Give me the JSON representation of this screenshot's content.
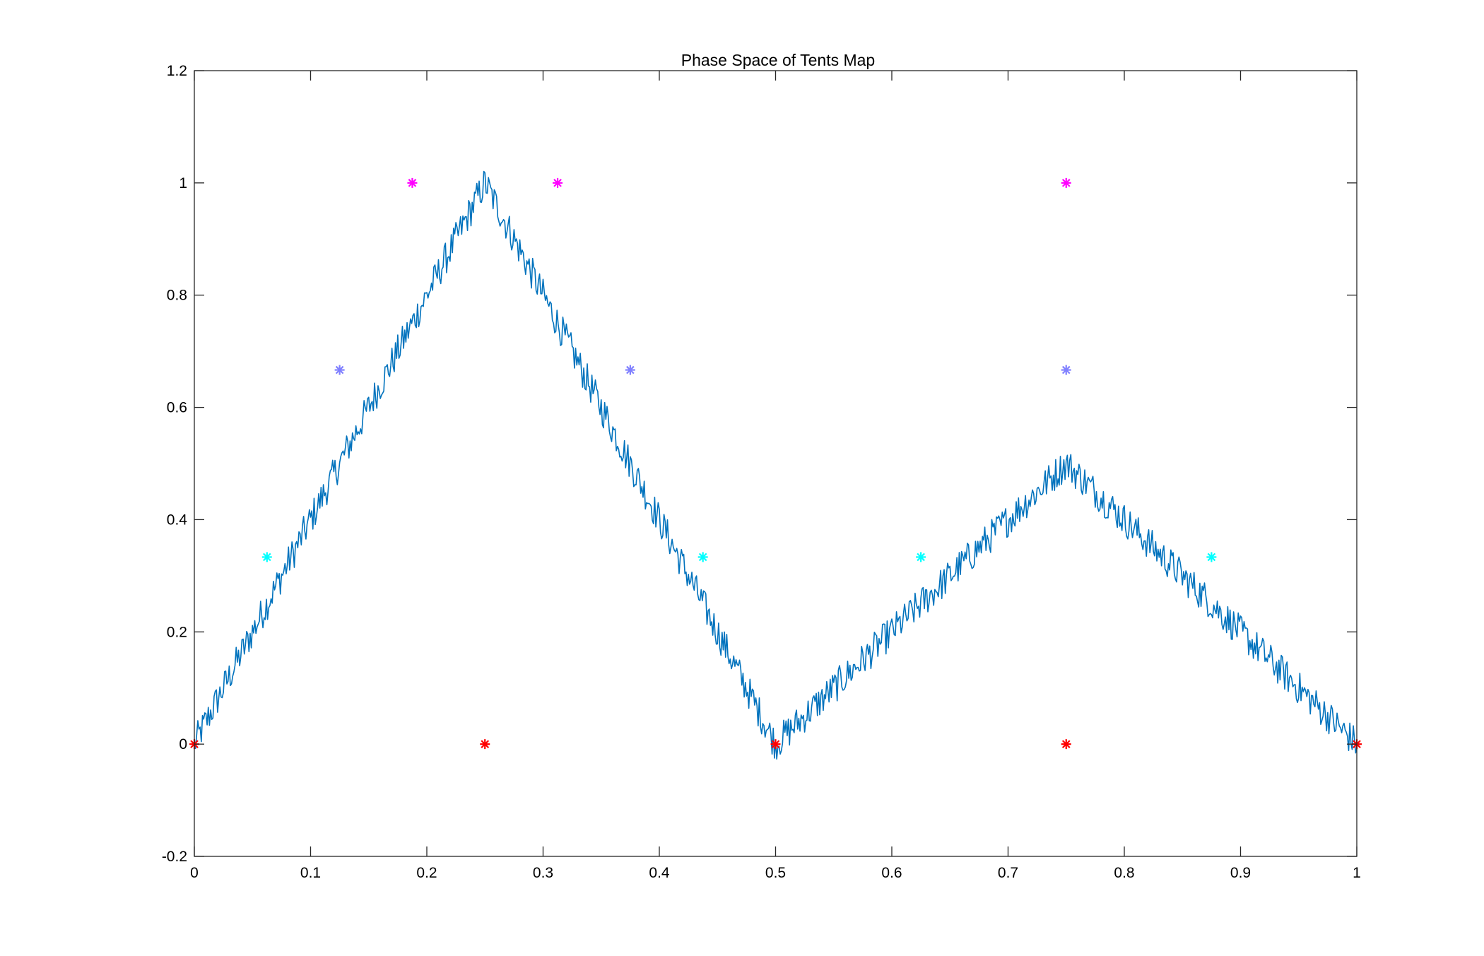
{
  "chart_data": {
    "type": "line",
    "title": "Phase Space of Tents Map",
    "xlabel": "",
    "ylabel": "",
    "xlim": [
      0,
      1
    ],
    "ylim": [
      -0.2,
      1.2
    ],
    "grid": false,
    "x_ticks": [
      0,
      0.1,
      0.2,
      0.3,
      0.4,
      0.5,
      0.6,
      0.7,
      0.8,
      0.9,
      1
    ],
    "x_tick_labels": [
      "0",
      "0.1",
      "0.2",
      "0.3",
      "0.4",
      "0.5",
      "0.6",
      "0.7",
      "0.8",
      "0.9",
      "1"
    ],
    "y_ticks": [
      -0.2,
      0,
      0.2,
      0.4,
      0.6,
      0.8,
      1,
      1.2
    ],
    "y_tick_labels": [
      "-0.2",
      "0",
      "0.2",
      "0.4",
      "0.6",
      "0.8",
      "1",
      "1.2"
    ],
    "series": [
      {
        "kind": "line",
        "color": "#0072BD",
        "x": [
          0,
          0.02,
          0.04,
          0.06,
          0.08,
          0.1,
          0.12,
          0.14,
          0.16,
          0.18,
          0.2,
          0.22,
          0.24,
          0.25,
          0.26,
          0.28,
          0.3,
          0.32,
          0.34,
          0.36,
          0.38,
          0.4,
          0.42,
          0.44,
          0.46,
          0.48,
          0.5,
          0.52,
          0.54,
          0.56,
          0.58,
          0.6,
          0.62,
          0.64,
          0.66,
          0.68,
          0.7,
          0.72,
          0.74,
          0.75,
          0.76,
          0.78,
          0.8,
          0.82,
          0.84,
          0.86,
          0.88,
          0.9,
          0.92,
          0.94,
          0.96,
          0.98,
          1
        ],
        "y": [
          0.0,
          0.08,
          0.16,
          0.24,
          0.32,
          0.4,
          0.48,
          0.56,
          0.64,
          0.72,
          0.8,
          0.88,
          0.96,
          1.0,
          0.96,
          0.88,
          0.8,
          0.72,
          0.64,
          0.56,
          0.48,
          0.4,
          0.32,
          0.24,
          0.16,
          0.08,
          0.0,
          0.04,
          0.08,
          0.12,
          0.16,
          0.2,
          0.24,
          0.28,
          0.32,
          0.36,
          0.4,
          0.44,
          0.48,
          0.5,
          0.48,
          0.44,
          0.4,
          0.36,
          0.32,
          0.28,
          0.24,
          0.2,
          0.16,
          0.12,
          0.08,
          0.04,
          0.0
        ],
        "noise_amplitude": 0.03
      },
      {
        "kind": "markers",
        "marker": "*",
        "color": "#FF0000",
        "points": [
          [
            0,
            0
          ],
          [
            0.25,
            0
          ],
          [
            0.5,
            0
          ],
          [
            0.75,
            0
          ],
          [
            1,
            0
          ]
        ]
      },
      {
        "kind": "markers",
        "marker": "*",
        "color": "#00FFFF",
        "points": [
          [
            0.0625,
            0.3333
          ],
          [
            0.4375,
            0.3333
          ],
          [
            0.625,
            0.3333
          ],
          [
            0.875,
            0.3333
          ]
        ]
      },
      {
        "kind": "markers",
        "marker": "*",
        "color": "#8080FF",
        "points": [
          [
            0.125,
            0.6667
          ],
          [
            0.375,
            0.6667
          ],
          [
            0.75,
            0.6667
          ]
        ]
      },
      {
        "kind": "markers",
        "marker": "*",
        "color": "#FF00FF",
        "points": [
          [
            0.1875,
            1.0
          ],
          [
            0.3125,
            1.0
          ],
          [
            0.75,
            1.0
          ]
        ]
      }
    ]
  }
}
